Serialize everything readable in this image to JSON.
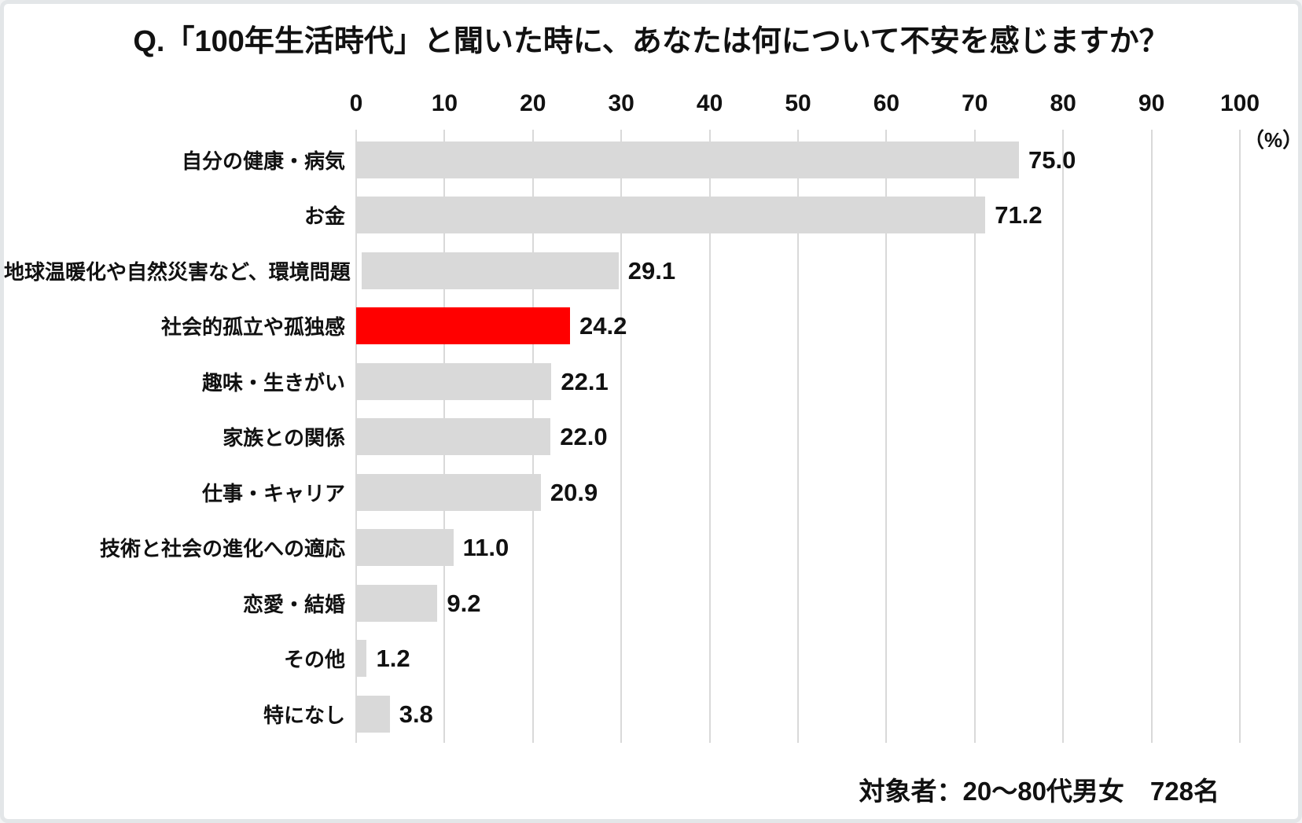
{
  "title": "Q.「100年生活時代」と聞いた時に、あなたは何について不安を感じますか？",
  "footer": "対象者：20～80代男女　728名",
  "chart_data": {
    "type": "bar",
    "orientation": "horizontal",
    "title": "Q.「100年生活時代」と聞いた時に、あなたは何について不安を感じますか？",
    "categories": [
      "自分の健康・病気",
      "お金",
      "地球温暖化や自然災害など、環境問題",
      "社会的孤立や孤独感",
      "趣味・生きがい",
      "家族との関係",
      "仕事・キャリア",
      "技術と社会の進化への適応",
      "恋愛・結婚",
      "その他",
      "特になし"
    ],
    "values": [
      75.0,
      71.2,
      29.1,
      24.2,
      22.1,
      22.0,
      20.9,
      11.0,
      9.2,
      1.2,
      3.8
    ],
    "value_labels": [
      "75.0",
      "71.2",
      "29.1",
      "24.2",
      "22.1",
      "22.0",
      "20.9",
      "11.0",
      "9.2",
      "1.2",
      "3.8"
    ],
    "highlight_index": 3,
    "axis": {
      "min": 0,
      "max": 100,
      "step": 10,
      "tick_labels": [
        "0",
        "10",
        "20",
        "30",
        "40",
        "50",
        "60",
        "70",
        "80",
        "90",
        "100"
      ],
      "unit_label": "（%）",
      "grid": true
    },
    "legend": null,
    "annotation": "対象者：20～80代男女　728名",
    "colors": {
      "bar": "#d9d9d9",
      "highlight": "#ff0000",
      "gridline": "#d9d9d9",
      "text": "#111111",
      "border": "#e3e6e8",
      "background": "#ffffff"
    }
  }
}
